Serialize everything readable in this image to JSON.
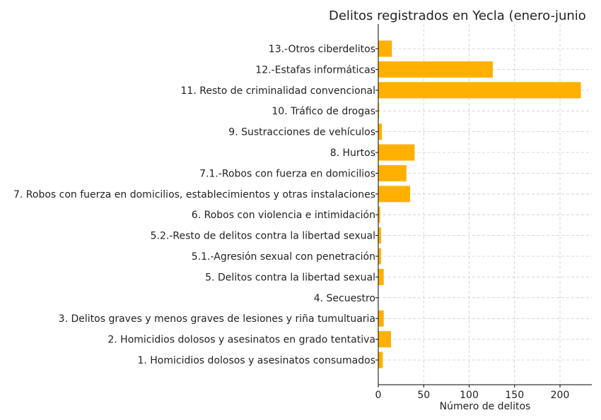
{
  "chart_data": {
    "type": "bar",
    "orientation": "horizontal",
    "title": "Delitos registrados en Yecla (enero-junio",
    "xlabel": "Número de delitos",
    "ylabel": "",
    "xlim": [
      0,
      235
    ],
    "xticks": [
      0,
      50,
      100,
      150,
      200
    ],
    "grid": true,
    "bar_color": "#FFB000",
    "categories": [
      "1. Homicidios dolosos y asesinatos consumados",
      "2. Homicidios dolosos y asesinatos en grado tentativa",
      "3. Delitos graves y menos graves de lesiones y riña tumultuaria",
      "4. Secuestro",
      "5. Delitos contra la libertad sexual",
      "5.1.-Agresión sexual con penetración",
      "5.2.-Resto de delitos contra la libertad sexual",
      "6. Robos con violencia e intimidación",
      "7. Robos con fuerza en domicilios, establecimientos y otras instalaciones",
      "7.1.-Robos con fuerza en domicilios",
      "8. Hurtos",
      "9. Sustracciones de vehículos",
      "10. Tráfico de drogas",
      "11. Resto de criminalidad convencional",
      "12.-Estafas informáticas",
      "13.-Otros ciberdelitos"
    ],
    "values": [
      5,
      14,
      6,
      0,
      6,
      3,
      3,
      2,
      35,
      31,
      40,
      4,
      1,
      223,
      126,
      15
    ]
  }
}
